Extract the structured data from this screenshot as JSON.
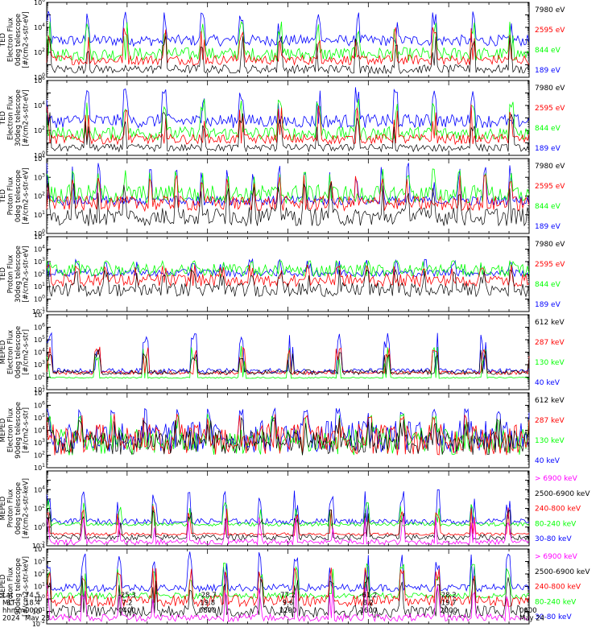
{
  "colors": {
    "blue": "#0000ff",
    "red": "#ff0000",
    "green": "#00ff00",
    "black": "#000000",
    "magenta": "#ff00ff",
    "axis": "#000000",
    "background": "#ffffff"
  },
  "chart_data": [
    {
      "type": "line",
      "scale": "log",
      "ylim_exp": [
        0,
        6
      ],
      "ylabel": [
        "TED",
        "Electron Flux",
        "0deg telescope",
        "[#/cm2-s-str-eV]"
      ],
      "legend": [
        {
          "label": "7980 eV",
          "color": "black"
        },
        {
          "label": "2595 eV",
          "color": "red"
        },
        {
          "label": "844 eV",
          "color": "green"
        },
        {
          "label": "189 eV",
          "color": "blue"
        }
      ],
      "tick_exps": [
        0,
        2,
        4,
        6
      ],
      "profile": {
        "blue": [
          2.5,
          3.4
        ],
        "green": [
          1.3,
          2.4
        ],
        "red": [
          1.0,
          1.8
        ],
        "black": [
          0.3,
          1.0
        ],
        "spikes": 5.3,
        "period": 24
      }
    },
    {
      "type": "line",
      "scale": "log",
      "ylim_exp": [
        0,
        6
      ],
      "ylabel": [
        "TED",
        "Electron Flux",
        "30deg telescope",
        "[#/cm2-s-str-eV]"
      ],
      "legend": [
        {
          "label": "7980 eV",
          "color": "black"
        },
        {
          "label": "2595 eV",
          "color": "red"
        },
        {
          "label": "844 eV",
          "color": "green"
        },
        {
          "label": "189 eV",
          "color": "blue"
        }
      ],
      "tick_exps": [
        0,
        2,
        4,
        6
      ],
      "profile": {
        "blue": [
          2.2,
          3.3
        ],
        "green": [
          1.2,
          2.3
        ],
        "red": [
          0.9,
          1.7
        ],
        "black": [
          0.3,
          0.9
        ],
        "spikes": 5.5,
        "period": 24
      }
    },
    {
      "type": "line",
      "scale": "log",
      "ylim_exp": [
        0,
        4
      ],
      "ylabel": [
        "TED",
        "Proton Flux",
        "0deg telescope",
        "[#/cm2-s-str-eV]"
      ],
      "legend": [
        {
          "label": "7980 eV",
          "color": "black"
        },
        {
          "label": "2595 eV",
          "color": "red"
        },
        {
          "label": "844 eV",
          "color": "green"
        },
        {
          "label": "189 eV",
          "color": "blue"
        }
      ],
      "tick_exps": [
        0,
        1,
        2,
        3,
        4
      ],
      "profile": {
        "blue": [
          1.5,
          2.0
        ],
        "green": [
          1.6,
          2.6
        ],
        "red": [
          1.2,
          2.0
        ],
        "black": [
          0.4,
          1.4
        ],
        "spikes": 3.8,
        "period": 16
      }
    },
    {
      "type": "line",
      "scale": "log",
      "ylim_exp": [
        -1,
        5
      ],
      "ylabel": [
        "TED",
        "Proton Flux",
        "30deg telescope",
        "[#/cm2-s-str-eV]"
      ],
      "legend": [
        {
          "label": "7980 eV",
          "color": "black"
        },
        {
          "label": "2595 eV",
          "color": "red"
        },
        {
          "label": "844 eV",
          "color": "green"
        },
        {
          "label": "189 eV",
          "color": "blue"
        }
      ],
      "tick_exps": [
        -1,
        0,
        1,
        2,
        3,
        4,
        5
      ],
      "profile": {
        "blue": [
          1.8,
          2.4
        ],
        "green": [
          1.8,
          2.8
        ],
        "red": [
          1.0,
          2.0
        ],
        "black": [
          0.2,
          1.3
        ],
        "spikes": 3.2,
        "period": 18
      }
    },
    {
      "type": "line",
      "scale": "log",
      "ylim_exp": [
        1,
        7
      ],
      "ylabel": [
        "MEPED",
        "Electron Flux",
        "0deg telescope",
        "[#/cm2-s-str]"
      ],
      "legend": [
        {
          "label": "612 keV",
          "color": "black"
        },
        {
          "label": "287 keV",
          "color": "red"
        },
        {
          "label": "130 keV",
          "color": "green"
        },
        {
          "label": "40 keV",
          "color": "blue"
        }
      ],
      "tick_exps": [
        1,
        2,
        3,
        4,
        5,
        6,
        7
      ],
      "profile": {
        "blue": [
          2.3,
          2.7
        ],
        "green": [
          1.9,
          2.0
        ],
        "red": [
          2.2,
          2.5
        ],
        "black": [
          2.2,
          2.6
        ],
        "spikes": 5.6,
        "period": 30
      }
    },
    {
      "type": "line",
      "scale": "log",
      "ylim_exp": [
        1,
        7
      ],
      "ylabel": [
        "MEPED",
        "Electron Flux",
        "90deg telescope",
        "[#/cm2-s-str]"
      ],
      "legend": [
        {
          "label": "612 keV",
          "color": "black"
        },
        {
          "label": "287 keV",
          "color": "red"
        },
        {
          "label": "130 keV",
          "color": "green"
        },
        {
          "label": "40 keV",
          "color": "blue"
        }
      ],
      "tick_exps": [
        1,
        2,
        3,
        4,
        5,
        6,
        7
      ],
      "profile": {
        "blue": [
          2.2,
          4.8
        ],
        "green": [
          2.0,
          4.2
        ],
        "red": [
          2.0,
          4.5
        ],
        "black": [
          2.0,
          4.0
        ],
        "spikes": 5.8,
        "period": 20
      }
    },
    {
      "type": "line",
      "scale": "log",
      "ylim_exp": [
        -2,
        6
      ],
      "ylabel": [
        "MEPED",
        "Proton Flux",
        "0deg telescope",
        "[#/cm2-s-str-keV]"
      ],
      "legend": [
        {
          "label": "> 6900 keV",
          "color": "magenta"
        },
        {
          "label": "2500-6900 keV",
          "color": "black"
        },
        {
          "label": "240-800 keV",
          "color": "red"
        },
        {
          "label": "80-240 keV",
          "color": "green"
        },
        {
          "label": "30-80 keV",
          "color": "blue"
        }
      ],
      "tick_exps": [
        -2,
        0,
        2,
        4
      ],
      "profile": {
        "blue": [
          0.3,
          0.9
        ],
        "green": [
          0.1,
          0.5
        ],
        "red": [
          -0.9,
          -0.6
        ],
        "black": [
          -1.4,
          -0.8
        ],
        "magenta": [
          -1.9,
          -1.3
        ],
        "spikes": 4.0,
        "period": 22
      }
    },
    {
      "type": "line",
      "scale": "log",
      "ylim_exp": [
        -2,
        4
      ],
      "ylabel": [
        "MEPED",
        "Proton Flux",
        "90deg telescope",
        "[#/cm2-s-str-keV]"
      ],
      "legend": [
        {
          "label": "> 6900 keV",
          "color": "magenta"
        },
        {
          "label": "2500-6900 keV",
          "color": "black"
        },
        {
          "label": "240-800 keV",
          "color": "red"
        },
        {
          "label": "80-240 keV",
          "color": "green"
        },
        {
          "label": "30-80 keV",
          "color": "blue"
        }
      ],
      "tick_exps": [
        -2,
        -1,
        0,
        1,
        2,
        3,
        4
      ],
      "profile": {
        "blue": [
          0.6,
          1.2
        ],
        "green": [
          0.0,
          0.5
        ],
        "red": [
          -0.6,
          0.3
        ],
        "black": [
          -1.5,
          -0.5
        ],
        "magenta": [
          -1.8,
          -1.2
        ],
        "spikes": 3.8,
        "period": 22
      }
    }
  ],
  "time_axis": {
    "rows": [
      {
        "label": "Lat",
        "values": [
          "74.5",
          "-25.3",
          "-28.7",
          "77.2",
          "-61.2",
          "28.2",
          ""
        ]
      },
      {
        "label": "MLT",
        "values": [
          "18.4",
          "7.2",
          "19.8",
          "9.6",
          "8.2",
          "19.7",
          ""
        ]
      },
      {
        "label": "hhmm",
        "values": [
          "0000",
          "0400",
          "0800",
          "1200",
          "1600",
          "2000",
          "0000"
        ]
      },
      {
        "label": "2024",
        "values": [
          "May 23",
          "",
          "",
          "",
          "",
          "",
          "May 24"
        ]
      }
    ]
  }
}
